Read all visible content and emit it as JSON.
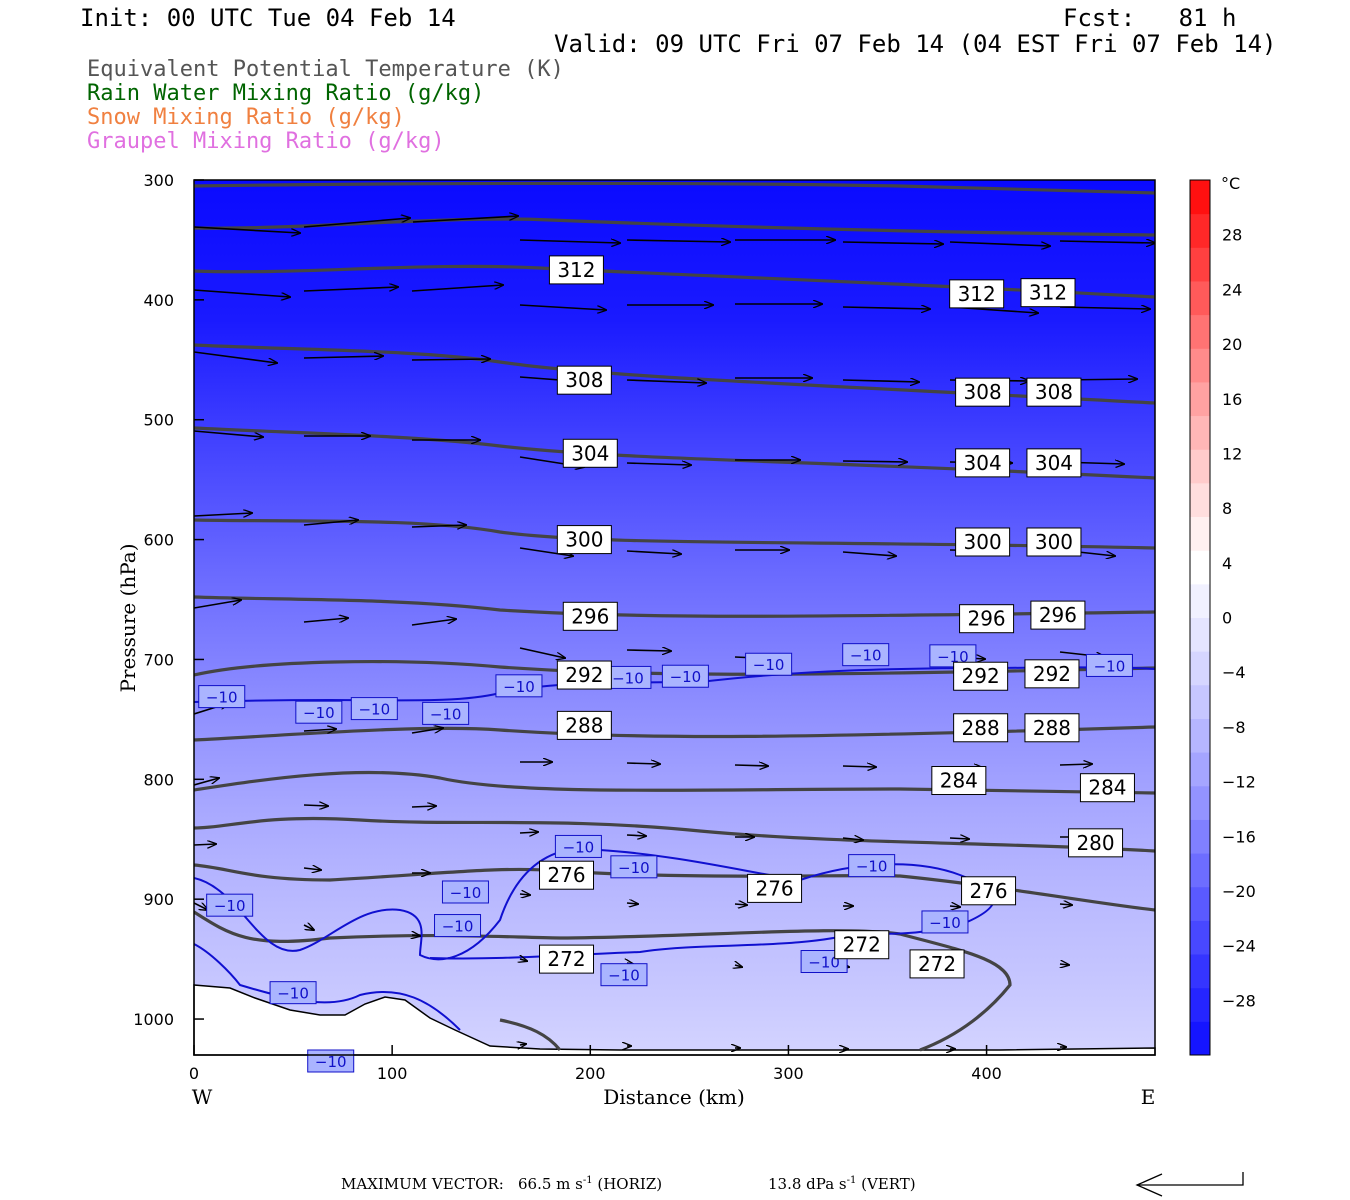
{
  "header": {
    "init": "Init: 00 UTC Tue 04 Feb 14",
    "fcst": "Fcst:   81 h",
    "valid": "Valid: 09 UTC Fri 07 Feb 14 (04 EST Fri 07 Feb 14)"
  },
  "legend": [
    {
      "label": "Equivalent Potential Temperature (K)",
      "color": "#555555"
    },
    {
      "label": "Rain Water Mixing Ratio (g/kg)",
      "color": "#006400"
    },
    {
      "label": "Snow Mixing Ratio (g/kg)",
      "color": "#f08040"
    },
    {
      "label": "Graupel Mixing Ratio (g/kg)",
      "color": "#e070e0"
    }
  ],
  "footer": {
    "max_vector": "MAXIMUM VECTOR:",
    "horiz_value": "66.5 m s",
    "horiz_unit": " (HORIZ)",
    "vert_value": "13.8 dPa s",
    "vert_unit": " (VERT)",
    "exponent": "-1"
  },
  "chart_data": {
    "type": "cross-section",
    "xlabel": "Distance (km)",
    "ylabel": "Pressure (hPa)",
    "x_ticks": [
      0,
      100,
      200,
      300,
      400
    ],
    "x_ends": {
      "left": "W",
      "right": "E"
    },
    "xlim": [
      0,
      485
    ],
    "y_ticks": [
      300,
      400,
      500,
      600,
      700,
      800,
      900,
      1000
    ],
    "ylim": [
      300,
      1030
    ],
    "colorbar": {
      "unit": "°C",
      "ticks": [
        28,
        24,
        20,
        16,
        12,
        8,
        4,
        0,
        -4,
        -8,
        -12,
        -16,
        -20,
        -24,
        -28
      ],
      "range": [
        -32,
        32
      ],
      "colors": [
        "#1515ff",
        "#2525ff",
        "#3535ff",
        "#4848ff",
        "#5a5aff",
        "#6d6dff",
        "#8080ff",
        "#9393ff",
        "#a5a5ff",
        "#b6b6ff",
        "#c6c6ff",
        "#d6d6ff",
        "#e4e4ff",
        "#f1f1ff",
        "#ffffff",
        "#fff0f0",
        "#ffdede",
        "#ffcbcb",
        "#ffb7b7",
        "#ffa2a2",
        "#ff8b8b",
        "#ff7373",
        "#ff5a5a",
        "#ff4040",
        "#ff2828",
        "#ff1010"
      ]
    },
    "theta_e_labels": [
      {
        "value": "312",
        "x": 193,
        "p": 375
      },
      {
        "value": "312",
        "x": 395,
        "p": 395
      },
      {
        "value": "312",
        "x": 431,
        "p": 394
      },
      {
        "value": "308",
        "x": 197,
        "p": 467
      },
      {
        "value": "308",
        "x": 398,
        "p": 477
      },
      {
        "value": "308",
        "x": 434,
        "p": 477
      },
      {
        "value": "304",
        "x": 200,
        "p": 528
      },
      {
        "value": "304",
        "x": 398,
        "p": 536
      },
      {
        "value": "304",
        "x": 434,
        "p": 536
      },
      {
        "value": "300",
        "x": 197,
        "p": 600
      },
      {
        "value": "300",
        "x": 398,
        "p": 602
      },
      {
        "value": "300",
        "x": 434,
        "p": 602
      },
      {
        "value": "296",
        "x": 200,
        "p": 664
      },
      {
        "value": "296",
        "x": 400,
        "p": 666
      },
      {
        "value": "296",
        "x": 436,
        "p": 663
      },
      {
        "value": "292",
        "x": 197,
        "p": 713
      },
      {
        "value": "292",
        "x": 397,
        "p": 714
      },
      {
        "value": "292",
        "x": 433,
        "p": 712
      },
      {
        "value": "288",
        "x": 197,
        "p": 755
      },
      {
        "value": "288",
        "x": 397,
        "p": 757
      },
      {
        "value": "288",
        "x": 433,
        "p": 757
      },
      {
        "value": "284",
        "x": 386,
        "p": 801
      },
      {
        "value": "284",
        "x": 461,
        "p": 807
      },
      {
        "value": "280",
        "x": 455,
        "p": 853
      },
      {
        "value": "276",
        "x": 188,
        "p": 880
      },
      {
        "value": "276",
        "x": 293,
        "p": 891
      },
      {
        "value": "276",
        "x": 401,
        "p": 893
      },
      {
        "value": "272",
        "x": 188,
        "p": 950
      },
      {
        "value": "272",
        "x": 337,
        "p": 938
      },
      {
        "value": "272",
        "x": 375,
        "p": 954
      }
    ],
    "temp_labels": [
      {
        "value": "−10",
        "x": 14,
        "p": 731
      },
      {
        "value": "−10",
        "x": 63,
        "p": 744
      },
      {
        "value": "−10",
        "x": 91,
        "p": 741
      },
      {
        "value": "−10",
        "x": 127,
        "p": 745
      },
      {
        "value": "−10",
        "x": 164,
        "p": 722
      },
      {
        "value": "−10",
        "x": 219,
        "p": 715
      },
      {
        "value": "−10",
        "x": 248,
        "p": 714
      },
      {
        "value": "−10",
        "x": 290,
        "p": 704
      },
      {
        "value": "−10",
        "x": 339,
        "p": 696
      },
      {
        "value": "−10",
        "x": 383,
        "p": 697
      },
      {
        "value": "−10",
        "x": 462,
        "p": 705
      },
      {
        "value": "−10",
        "x": 194,
        "p": 856
      },
      {
        "value": "−10",
        "x": 222,
        "p": 873
      },
      {
        "value": "−10",
        "x": 137,
        "p": 894
      },
      {
        "value": "−10",
        "x": 18,
        "p": 905
      },
      {
        "value": "−10",
        "x": 133,
        "p": 922
      },
      {
        "value": "−10",
        "x": 342,
        "p": 872
      },
      {
        "value": "−10",
        "x": 379,
        "p": 919
      },
      {
        "value": "−10",
        "x": 318,
        "p": 952
      },
      {
        "value": "−10",
        "x": 217,
        "p": 963
      },
      {
        "value": "−10",
        "x": 50,
        "p": 978
      },
      {
        "value": "−10",
        "x": 69,
        "p": 1035
      }
    ]
  }
}
